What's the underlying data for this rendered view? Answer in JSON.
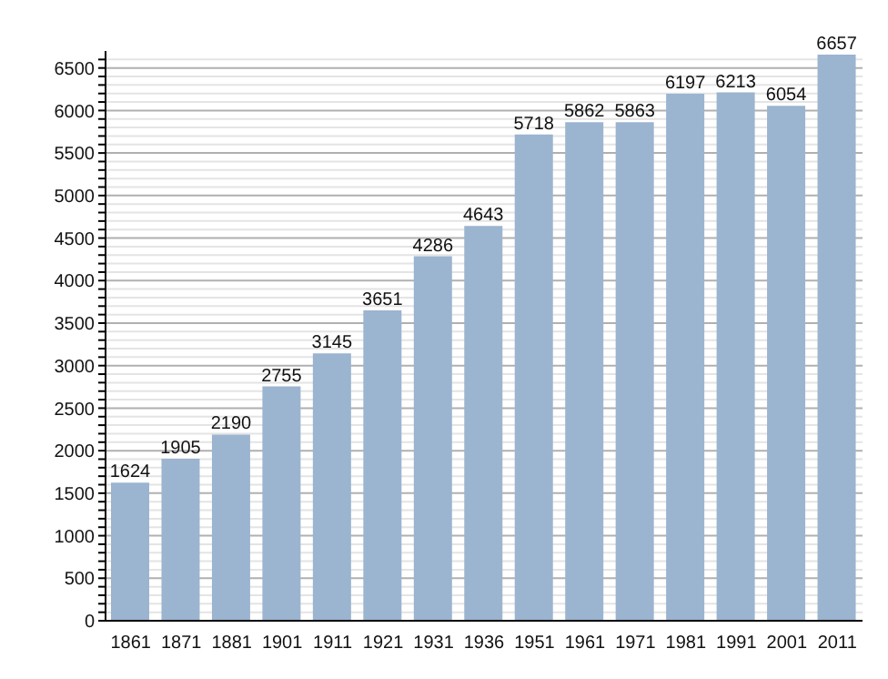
{
  "chart_data": {
    "type": "bar",
    "categories": [
      "1861",
      "1871",
      "1881",
      "1901",
      "1911",
      "1921",
      "1931",
      "1936",
      "1951",
      "1961",
      "1971",
      "1981",
      "1991",
      "2001",
      "2011"
    ],
    "values": [
      1624,
      1905,
      2190,
      2755,
      3145,
      3651,
      4286,
      4643,
      5718,
      5862,
      5863,
      6197,
      6213,
      6054,
      6657
    ],
    "color": "#9bb4d0",
    "data_labels": true,
    "grid": "y",
    "ylim": [
      0,
      6700
    ],
    "yticks": [
      0,
      {
        "value": 100,
        "label": null
      },
      {
        "value": 200,
        "label": null
      },
      {
        "value": 300,
        "label": null
      },
      {
        "value": 400,
        "label": null
      },
      500,
      {
        "value": 600,
        "label": null
      },
      {
        "value": 700,
        "label": null
      },
      {
        "value": 800,
        "label": null
      },
      {
        "value": 900,
        "label": null
      },
      1000,
      {
        "value": 1100,
        "label": null
      },
      {
        "value": 1200,
        "label": null
      },
      {
        "value": 1300,
        "label": null
      },
      {
        "value": 1400,
        "label": null
      },
      1500,
      {
        "value": 1600,
        "label": null
      },
      {
        "value": 1700,
        "label": null
      },
      {
        "value": 1800,
        "label": null
      },
      {
        "value": 1900,
        "label": null
      },
      2000,
      {
        "value": 2100,
        "label": null
      },
      {
        "value": 2200,
        "label": null
      },
      {
        "value": 2300,
        "label": null
      },
      {
        "value": 2400,
        "label": null
      },
      2500,
      {
        "value": 2600,
        "label": null
      },
      {
        "value": 2700,
        "label": null
      },
      {
        "value": 2800,
        "label": null
      },
      {
        "value": 2900,
        "label": null
      },
      3000,
      {
        "value": 3100,
        "label": null
      },
      {
        "value": 3200,
        "label": null
      },
      {
        "value": 3300,
        "label": null
      },
      {
        "value": 3400,
        "label": null
      },
      3500,
      {
        "value": 3600,
        "label": null
      },
      {
        "value": 3700,
        "label": null
      },
      {
        "value": 3800,
        "label": null
      },
      {
        "value": 3900,
        "label": null
      },
      4000,
      {
        "value": 4100,
        "label": null
      },
      {
        "value": 4200,
        "label": null
      },
      {
        "value": 4300,
        "label": null
      },
      {
        "value": 4400,
        "label": null
      },
      4500,
      {
        "value": 4600,
        "label": null
      },
      {
        "value": 4700,
        "label": null
      },
      {
        "value": 4800,
        "label": null
      },
      {
        "value": 4900,
        "label": null
      },
      5000,
      {
        "value": 5100,
        "label": null
      },
      {
        "value": 5200,
        "label": null
      },
      {
        "value": 5300,
        "label": null
      },
      {
        "value": 5400,
        "label": null
      },
      5500,
      {
        "value": 5600,
        "label": null
      },
      {
        "value": 5700,
        "label": null
      },
      {
        "value": 5800,
        "label": null
      },
      {
        "value": 5900,
        "label": null
      },
      6000,
      {
        "value": 6100,
        "label": null
      },
      {
        "value": 6200,
        "label": null
      },
      {
        "value": 6300,
        "label": null
      },
      {
        "value": 6400,
        "label": null
      },
      6500,
      {
        "value": 6600,
        "label": null
      }
    ]
  }
}
